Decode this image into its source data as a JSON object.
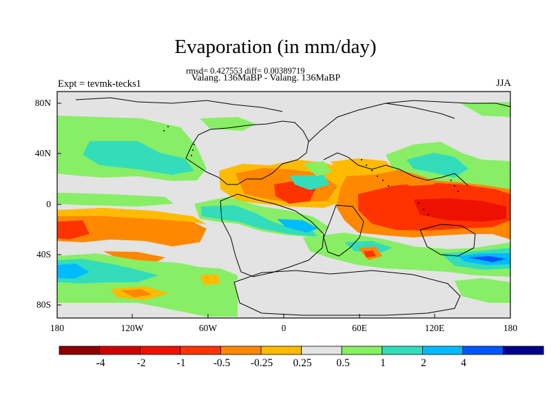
{
  "title": "Evaporation (in mm/day)",
  "subtitle_stats": "rmsd= 0.427553 diff= 0.00389719",
  "subtitle_expts": "Valang. 136MaBP - Valang. 136MaBP",
  "left_label": "Expt = tevmk-tecks1",
  "right_label": "JJA",
  "lat_ticks": [
    "80N",
    "40N",
    "0",
    "40S",
    "80S"
  ],
  "lon_ticks": [
    "180",
    "120W",
    "60W",
    "0",
    "60E",
    "120E",
    "180"
  ],
  "colorbar": {
    "colors": [
      "#8b0000",
      "#cc0000",
      "#ee1100",
      "#ff3300",
      "#ff8800",
      "#ffbb00",
      "#e3e3e3",
      "#88ee66",
      "#33ddbb",
      "#00bbff",
      "#0055ff",
      "#000088"
    ],
    "labels": [
      "-4",
      "-2",
      "-1",
      "-0.5",
      "-0.25",
      "0.25",
      "0.5",
      "1",
      "2",
      "4"
    ]
  },
  "colors": {
    "land_background": "#e3e3e3",
    "orange": "#ff8800",
    "yellow_orange": "#ffbb00",
    "red_orange": "#ff3300",
    "green": "#88ee66",
    "cyan": "#33ddbb",
    "blue": "#00bbff",
    "dark_blue": "#0055ff"
  }
}
